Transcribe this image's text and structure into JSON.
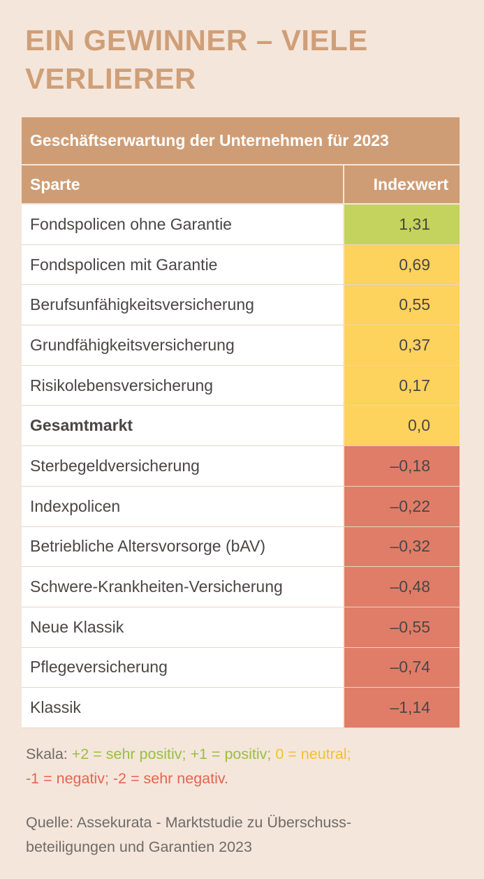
{
  "title": {
    "line1": "EIN GEWINNER – VIELE",
    "line2": "VERLIERER"
  },
  "colors": {
    "accent": "#cf9d75",
    "positive": "#c3d35d",
    "neutral": "#fdd25d",
    "negative": "#e07d68"
  },
  "chart_data": {
    "type": "table",
    "title": "Geschäftserwartung der Unternehmen für 2023",
    "columns": [
      "Sparte",
      "Indexwert"
    ],
    "rows": [
      {
        "name": "Fondspolicen ohne Garantie",
        "value": "1,31",
        "bold": false,
        "status": "positive"
      },
      {
        "name": "Fondspolicen mit Garantie",
        "value": "0,69",
        "bold": false,
        "status": "neutral"
      },
      {
        "name": "Berufsunfähigkeitsversicherung",
        "value": "0,55",
        "bold": false,
        "status": "neutral"
      },
      {
        "name": "Grundfähigkeitsversicherung",
        "value": "0,37",
        "bold": false,
        "status": "neutral"
      },
      {
        "name": "Risikolebensversicherung",
        "value": "0,17",
        "bold": false,
        "status": "neutral"
      },
      {
        "name": "Gesamtmarkt",
        "value": "0,0",
        "bold": true,
        "status": "neutral"
      },
      {
        "name": "Sterbegeldversicherung",
        "value": "–0,18",
        "bold": false,
        "status": "negative"
      },
      {
        "name": "Indexpolicen",
        "value": "–0,22",
        "bold": false,
        "status": "negative"
      },
      {
        "name": "Betriebliche Altersvorsorge (bAV)",
        "value": "–0,32",
        "bold": false,
        "status": "negative"
      },
      {
        "name": "Schwere-Krankheiten-Versicherung",
        "value": "–0,48",
        "bold": false,
        "status": "negative"
      },
      {
        "name": "Neue Klassik",
        "value": "–0,55",
        "bold": false,
        "status": "negative"
      },
      {
        "name": "Pflegeversicherung",
        "value": "–0,74",
        "bold": false,
        "status": "negative"
      },
      {
        "name": "Klassik",
        "value": "–1,14",
        "bold": false,
        "status": "negative"
      }
    ]
  },
  "scale": {
    "prefix": "Skala: ",
    "pos2": "+2 = sehr positiv; ",
    "pos1": "+1 = positiv; ",
    "neutral": "0 = neutral;",
    "negatives": "-1 = negativ; -2 = sehr negativ."
  },
  "source": {
    "line1": "Quelle: Assekurata - Marktstudie zu Überschuss-",
    "line2": "beteiligungen und Garantien 2023"
  }
}
